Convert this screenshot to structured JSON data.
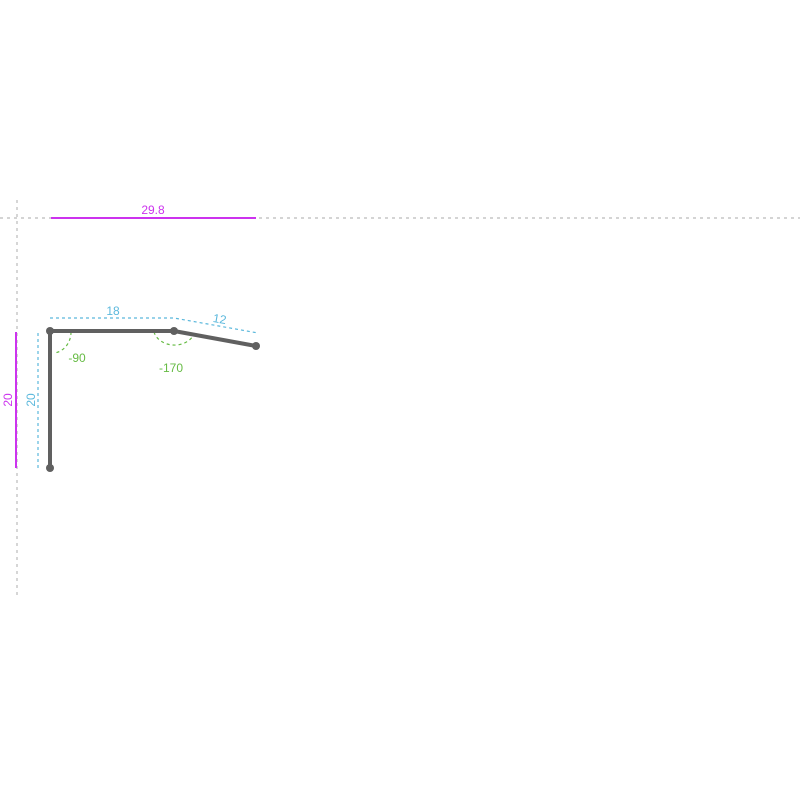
{
  "colors": {
    "profile": "#606060",
    "overall_dimension": "#cc33ee",
    "segment_dimension": "#5bb8dc",
    "angle": "#66bb44",
    "guide": "#bbbbbb"
  },
  "overall": {
    "width": "29.8",
    "height": "20"
  },
  "segments": [
    {
      "length": "20"
    },
    {
      "length": "18"
    },
    {
      "length": "12"
    }
  ],
  "angles": [
    {
      "value": "-90"
    },
    {
      "value": "-170"
    }
  ]
}
